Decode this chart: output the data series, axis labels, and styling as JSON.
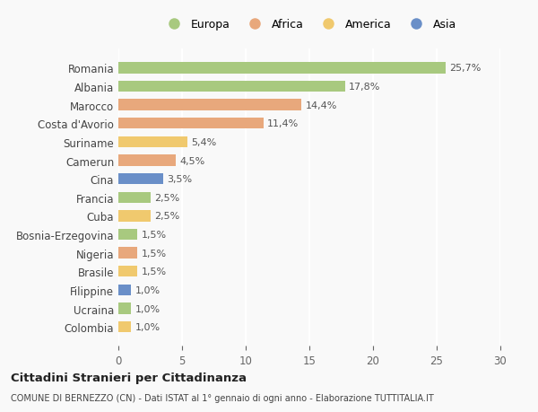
{
  "countries": [
    "Romania",
    "Albania",
    "Marocco",
    "Costa d'Avorio",
    "Suriname",
    "Camerun",
    "Cina",
    "Francia",
    "Cuba",
    "Bosnia-Erzegovina",
    "Nigeria",
    "Brasile",
    "Filippine",
    "Ucraina",
    "Colombia"
  ],
  "values": [
    25.7,
    17.8,
    14.4,
    11.4,
    5.4,
    4.5,
    3.5,
    2.5,
    2.5,
    1.5,
    1.5,
    1.5,
    1.0,
    1.0,
    1.0
  ],
  "labels": [
    "25,7%",
    "17,8%",
    "14,4%",
    "11,4%",
    "5,4%",
    "4,5%",
    "3,5%",
    "2,5%",
    "2,5%",
    "1,5%",
    "1,5%",
    "1,5%",
    "1,0%",
    "1,0%",
    "1,0%"
  ],
  "continents": [
    "Europa",
    "Europa",
    "Africa",
    "Africa",
    "America",
    "Africa",
    "Asia",
    "Europa",
    "America",
    "Europa",
    "Africa",
    "America",
    "Asia",
    "Europa",
    "America"
  ],
  "colors": {
    "Europa": "#a8c97f",
    "Africa": "#e8a87c",
    "America": "#f0c96e",
    "Asia": "#6a8fc8"
  },
  "legend_order": [
    "Europa",
    "Africa",
    "America",
    "Asia"
  ],
  "title": "Cittadini Stranieri per Cittadinanza",
  "subtitle": "COMUNE DI BERNEZZO (CN) - Dati ISTAT al 1° gennaio di ogni anno - Elaborazione TUTTITALIA.IT",
  "xlim": [
    0,
    30
  ],
  "xticks": [
    0,
    5,
    10,
    15,
    20,
    25,
    30
  ],
  "background_color": "#f9f9f9",
  "grid_color": "#ffffff"
}
